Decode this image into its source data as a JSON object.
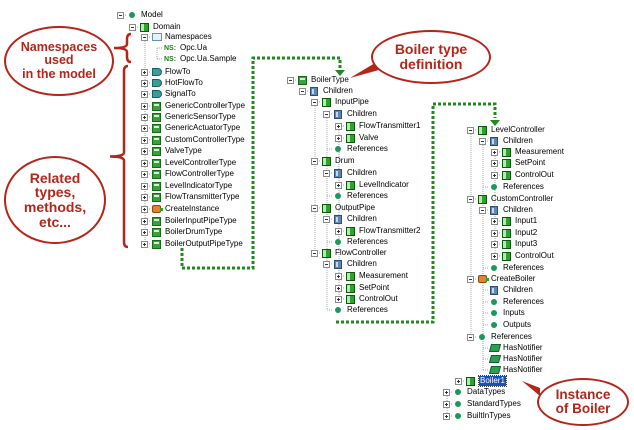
{
  "callouts": {
    "namespaces": [
      "Namespaces",
      "used",
      "in the model"
    ],
    "related": [
      "Related",
      "types,",
      "methods,",
      "etc..."
    ],
    "boiler_type": [
      "Boiler type",
      "definition"
    ],
    "instance": [
      "Instance",
      "of Boiler"
    ]
  },
  "colors": {
    "callout_red": "#b5251a",
    "connector_green": "#1f8a1f",
    "selection_blue": "#1b4fb8"
  },
  "tree1": [
    {
      "label": "Model",
      "icon": "dot"
    },
    {
      "label": "Domain",
      "icon": "obj"
    },
    {
      "label": "Namespaces",
      "icon": "ns"
    },
    {
      "label": "Opc.Ua",
      "icon": "nstag",
      "tag": "NS:"
    },
    {
      "label": "Opc.Ua.Sample",
      "icon": "nstag",
      "tag": "NS:"
    },
    {
      "label": "FlowTo",
      "icon": "ref"
    },
    {
      "label": "HotFlowTo",
      "icon": "ref"
    },
    {
      "label": "SignalTo",
      "icon": "ref"
    },
    {
      "label": "GenericControllerType",
      "icon": "typ"
    },
    {
      "label": "GenericSensorType",
      "icon": "typ"
    },
    {
      "label": "GenericActuatorType",
      "icon": "typ"
    },
    {
      "label": "CustomControllerType",
      "icon": "typ"
    },
    {
      "label": "ValveType",
      "icon": "typ"
    },
    {
      "label": "LevelControllerType",
      "icon": "typ"
    },
    {
      "label": "FlowControllerType",
      "icon": "typ"
    },
    {
      "label": "LevelIndicatorType",
      "icon": "typ"
    },
    {
      "label": "FlowTransmitterType",
      "icon": "typ"
    },
    {
      "label": "CreateInstance",
      "icon": "method"
    },
    {
      "label": "BoilerInputPipeType",
      "icon": "typ"
    },
    {
      "label": "BoilerDrumType",
      "icon": "typ"
    },
    {
      "label": "BoilerOutputPipeType",
      "icon": "typ"
    }
  ],
  "tree2": [
    {
      "label": "BoilerType",
      "icon": "typ"
    },
    {
      "label": "Children",
      "icon": "folder"
    },
    {
      "label": "InputPipe",
      "icon": "obj"
    },
    {
      "label": "Children",
      "icon": "folder"
    },
    {
      "label": "FlowTransmitter1",
      "icon": "obj"
    },
    {
      "label": "Valve",
      "icon": "obj"
    },
    {
      "label": "References",
      "icon": "dot"
    },
    {
      "label": "Drum",
      "icon": "obj"
    },
    {
      "label": "Children",
      "icon": "folder"
    },
    {
      "label": "LevelIndicator",
      "icon": "obj"
    },
    {
      "label": "References",
      "icon": "dot"
    },
    {
      "label": "OutputPipe",
      "icon": "obj"
    },
    {
      "label": "Children",
      "icon": "folder"
    },
    {
      "label": "FlowTransmitter2",
      "icon": "obj"
    },
    {
      "label": "References",
      "icon": "dot"
    },
    {
      "label": "FlowController",
      "icon": "obj"
    },
    {
      "label": "Children",
      "icon": "folder"
    },
    {
      "label": "Measurement",
      "icon": "obj"
    },
    {
      "label": "SetPoint",
      "icon": "obj"
    },
    {
      "label": "ControlOut",
      "icon": "obj"
    },
    {
      "label": "References",
      "icon": "dot"
    }
  ],
  "tree3": [
    {
      "label": "LevelController",
      "icon": "obj"
    },
    {
      "label": "Children",
      "icon": "folder"
    },
    {
      "label": "Measurement",
      "icon": "obj"
    },
    {
      "label": "SetPoint",
      "icon": "obj"
    },
    {
      "label": "ControlOut",
      "icon": "obj"
    },
    {
      "label": "References",
      "icon": "dot"
    },
    {
      "label": "CustomController",
      "icon": "obj"
    },
    {
      "label": "Children",
      "icon": "folder"
    },
    {
      "label": "Input1",
      "icon": "obj"
    },
    {
      "label": "Input2",
      "icon": "obj"
    },
    {
      "label": "Input3",
      "icon": "obj"
    },
    {
      "label": "ControlOut",
      "icon": "obj"
    },
    {
      "label": "References",
      "icon": "dot"
    },
    {
      "label": "CreateBoiler",
      "icon": "method"
    },
    {
      "label": "Children",
      "icon": "folder"
    },
    {
      "label": "References",
      "icon": "dot"
    },
    {
      "label": "Inputs",
      "icon": "dot"
    },
    {
      "label": "Outputs",
      "icon": "dot"
    },
    {
      "label": "References",
      "icon": "dot"
    },
    {
      "label": "HasNotifier",
      "icon": "notif"
    },
    {
      "label": "HasNotifier",
      "icon": "notif"
    },
    {
      "label": "HasNotifier",
      "icon": "notif"
    },
    {
      "label": "Boiler1",
      "icon": "obj",
      "selected": true
    },
    {
      "label": "DataTypes",
      "icon": "dot"
    },
    {
      "label": "StandardTypes",
      "icon": "dot"
    },
    {
      "label": "BuiltInTypes",
      "icon": "dot"
    }
  ]
}
